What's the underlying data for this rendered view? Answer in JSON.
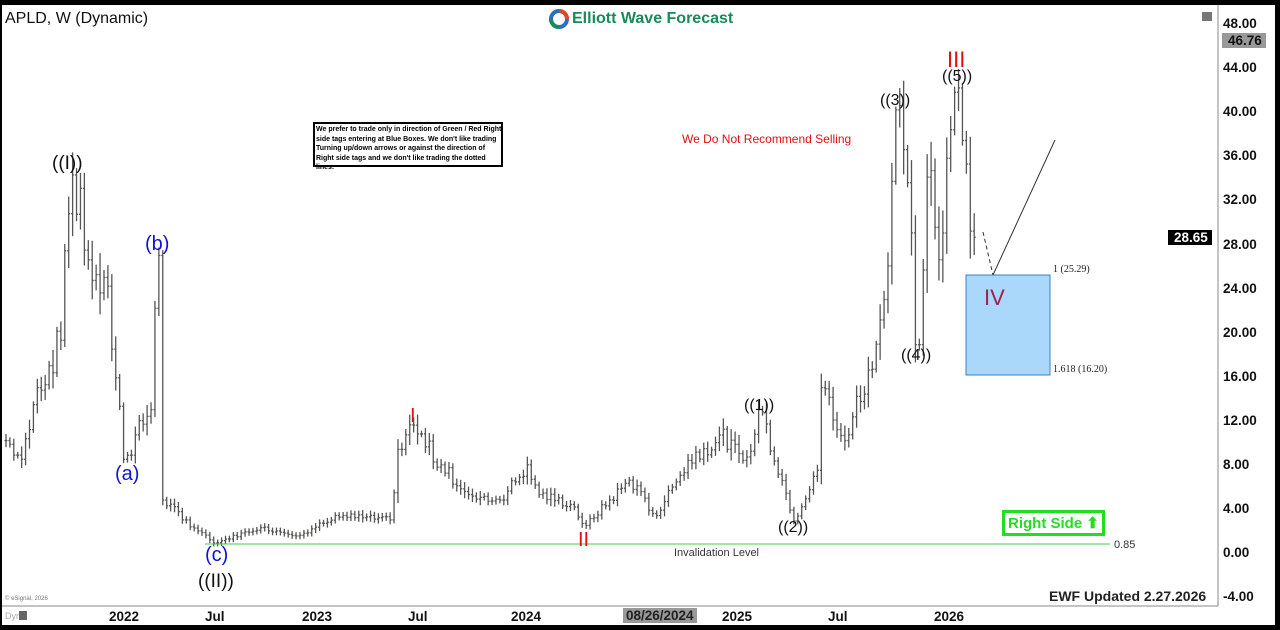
{
  "header": {
    "symbol_title": "APLD, W (Dynamic)",
    "brand": "Elliott Wave Forecast",
    "brand_colors": {
      "green": "#1a8a5a",
      "blue": "#2a6fc0",
      "red": "#d84a2a"
    }
  },
  "notice": "We prefer to trade only in direction of Green / Red Right side tags entering at Blue Boxes. We don't like trading Turning up/down arrows or against the direction of Right side tags and we don't like trading the dotted lines.",
  "recommendation": "We Do Not Recommend Selling",
  "right_side": {
    "label": "Right Side",
    "icon": "arrow-up-icon",
    "color": "#22dd22"
  },
  "invalidation": {
    "label": "Invalidation Level",
    "value_label": "0.85",
    "color": "#44cc44"
  },
  "blue_box": {
    "top_label": "1 (25.29)",
    "bottom_label": "1.618 (16.20)",
    "color": "#a9d8fa"
  },
  "footer": {
    "updated": "EWF Updated 2.27.2026",
    "copyright": "© eSignal, 2026",
    "mode": "Dyn",
    "cursor_date": "08/26/2024"
  },
  "price_tags": {
    "high": "46.76",
    "last": "28.65"
  },
  "wave_labels": {
    "w1": "((I))",
    "w2": "((II))",
    "a": "(a)",
    "b": "(b)",
    "c": "(c)",
    "I": "I",
    "II": "II",
    "III": "III",
    "IV": "IV",
    "m1": "((1))",
    "m2": "((2))",
    "m3": "((3))",
    "m4": "((4))",
    "m5": "((5))"
  },
  "chart_data": {
    "type": "ohlc",
    "title": "APLD, W (Dynamic)",
    "timeframe": "weekly",
    "ylim": [
      -4,
      48
    ],
    "y_ticks": [
      "48.00",
      "44.00",
      "40.00",
      "36.00",
      "32.00",
      "28.00",
      "24.00",
      "20.00",
      "16.00",
      "12.00",
      "8.00",
      "4.00",
      "0.00",
      "-4.00"
    ],
    "x_ticks": [
      "2022",
      "Jul",
      "2023",
      "Jul",
      "2024",
      "2025",
      "Jul",
      "2026"
    ],
    "grid": false,
    "last_price": 28.65,
    "levels": {
      "invalidation": 0.85,
      "fib_1": 25.29,
      "fib_1618": 16.2
    },
    "approx_path": [
      [
        "2021-06-18",
        10.2
      ],
      [
        "2021-07-15",
        8.5
      ],
      [
        "2021-08-16",
        15
      ],
      [
        "2021-09-25",
        19.3
      ],
      [
        "2021-10-13",
        34.3
      ],
      [
        "2021-11-17",
        26.6
      ],
      [
        "2021-12-14",
        25
      ],
      [
        "2022-01-19",
        8.5
      ],
      [
        "2022-03-04",
        13
      ],
      [
        "2022-03-18",
        27
      ],
      [
        "2022-03-30",
        4.8
      ],
      [
        "2022-05-05",
        3
      ],
      [
        "2022-06-28",
        0.9
      ],
      [
        "2022-09-16",
        2.3
      ],
      [
        "2022-11-28",
        1.6
      ],
      [
        "2023-01-29",
        3.4
      ],
      [
        "2023-05-06",
        3
      ],
      [
        "2023-05-23",
        9.4
      ],
      [
        "2023-06-14",
        11.6
      ],
      [
        "2023-07-31",
        8
      ],
      [
        "2023-09-23",
        5.3
      ],
      [
        "2023-11-15",
        4.8
      ],
      [
        "2024-01-03",
        8
      ],
      [
        "2024-01-24",
        5.3
      ],
      [
        "2024-03-16",
        4.4
      ],
      [
        "2024-04-11",
        2.5
      ],
      [
        "2024-06-28",
        6.6
      ],
      [
        "2024-08-11",
        3.4
      ],
      [
        "2024-10-10",
        8.4
      ],
      [
        "2024-12-02",
        10.7
      ],
      [
        "2025-01-14",
        8.4
      ],
      [
        "2025-02-13",
        12.8
      ],
      [
        "2025-04-11",
        2.9
      ],
      [
        "2025-05-23",
        7.5
      ],
      [
        "2025-05-31",
        15
      ],
      [
        "2025-07-06",
        10.2
      ],
      [
        "2025-08-19",
        16.6
      ],
      [
        "2025-09-15",
        23
      ],
      [
        "2025-10-06",
        40.2
      ],
      [
        "2025-10-20",
        36.6
      ],
      [
        "2025-11-12",
        18.9
      ],
      [
        "2025-12-03",
        34.7
      ],
      [
        "2025-12-20",
        26.6
      ],
      [
        "2026-01-07",
        38.4
      ],
      [
        "2026-01-21",
        42.2
      ],
      [
        "2026-02-20",
        28.65
      ]
    ]
  }
}
